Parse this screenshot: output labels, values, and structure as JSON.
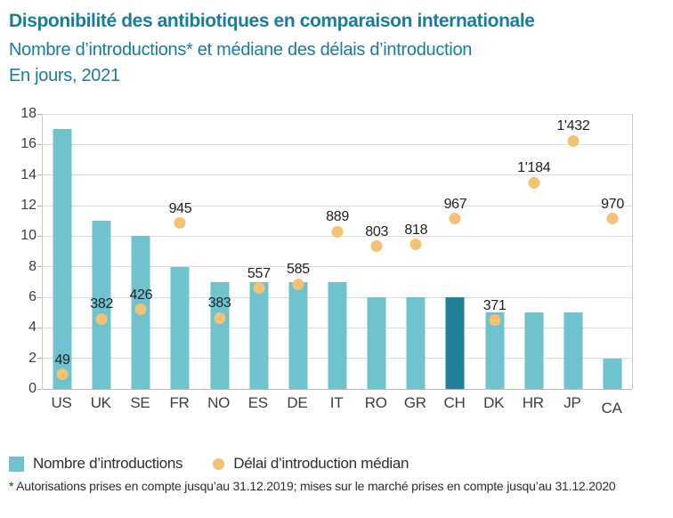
{
  "header": {
    "title": "Disponibilité des antibiotiques en comparaison internationale",
    "subtitle": "Nombre d’introductions* et médiane des délais d’introduction",
    "subtitle2": "En jours, 2021"
  },
  "legend": {
    "bars_label": "Nombre d’introductions",
    "dots_label": "Délai d’introduction médian"
  },
  "footnote": "* Autorisations prises en compte jusqu’au 31.12.2019; mises sur le marché prises en compte jusqu’au 31.12.2020",
  "colors": {
    "accent_teal_text": "#1b7b9c",
    "bar": "#6fc3ce",
    "bar_highlight_ch": "#217f96",
    "dot_orange": "#f7c173"
  },
  "chart_data": {
    "type": "bar",
    "subtype": "bar-plus-scatter-combo",
    "categories": [
      "US",
      "UK",
      "SE",
      "FR",
      "NO",
      "ES",
      "DE",
      "IT",
      "RO",
      "GR",
      "CH",
      "DK",
      "HR",
      "JP",
      "CA"
    ],
    "series": [
      {
        "name": "Nombre d’introductions",
        "type": "bar",
        "axis": "left",
        "values": [
          17,
          11,
          10,
          8,
          7,
          7,
          7,
          7,
          6,
          6,
          6,
          5,
          5,
          5,
          2
        ]
      },
      {
        "name": "Délai d’introduction médian",
        "type": "scatter",
        "unit": "jours",
        "values": [
          49,
          382,
          426,
          945,
          383,
          557,
          585,
          889,
          803,
          818,
          967,
          371,
          1184,
          1432,
          970
        ],
        "data_labels": [
          "49",
          "382",
          "426",
          "945",
          "383",
          "557",
          "585",
          "889",
          "803",
          "818",
          "967",
          "371",
          "1'184",
          "1'432",
          "970"
        ],
        "plotted_y_left_axis_units": [
          0.95,
          4.6,
          5.2,
          10.85,
          4.65,
          6.6,
          6.85,
          10.3,
          9.35,
          9.45,
          11.15,
          4.5,
          13.5,
          16.25,
          11.15
        ]
      }
    ],
    "highlight_category": "CH",
    "title": "Disponibilité des antibiotiques en comparaison internationale",
    "xlabel": "",
    "ylabel": "",
    "ylim": [
      0,
      18
    ],
    "ytick_step": 2,
    "grid": true,
    "legend_position": "bottom-left"
  }
}
